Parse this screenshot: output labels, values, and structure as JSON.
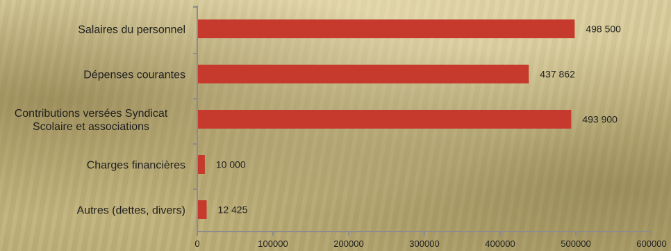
{
  "chart_data": {
    "type": "bar",
    "orientation": "horizontal",
    "title": "",
    "categories": [
      "Salaires du personnel",
      "Dépenses courantes",
      "Contributions versées Syndicat\nScolaire et associations",
      "Charges financières",
      "Autres (dettes, divers)"
    ],
    "values": [
      498500,
      437862,
      493900,
      10000,
      12425
    ],
    "value_labels": [
      "498 500",
      "437 862",
      "493 900",
      "10 000",
      "12 425"
    ],
    "xlim": [
      0,
      600000
    ],
    "x_ticks": [
      0,
      100000,
      200000,
      300000,
      400000,
      500000,
      600000
    ],
    "x_tick_labels": [
      "0",
      "100000",
      "200000",
      "300000",
      "400000",
      "500000",
      "600000"
    ],
    "grid": false,
    "bar_color": "#c53a2c"
  }
}
